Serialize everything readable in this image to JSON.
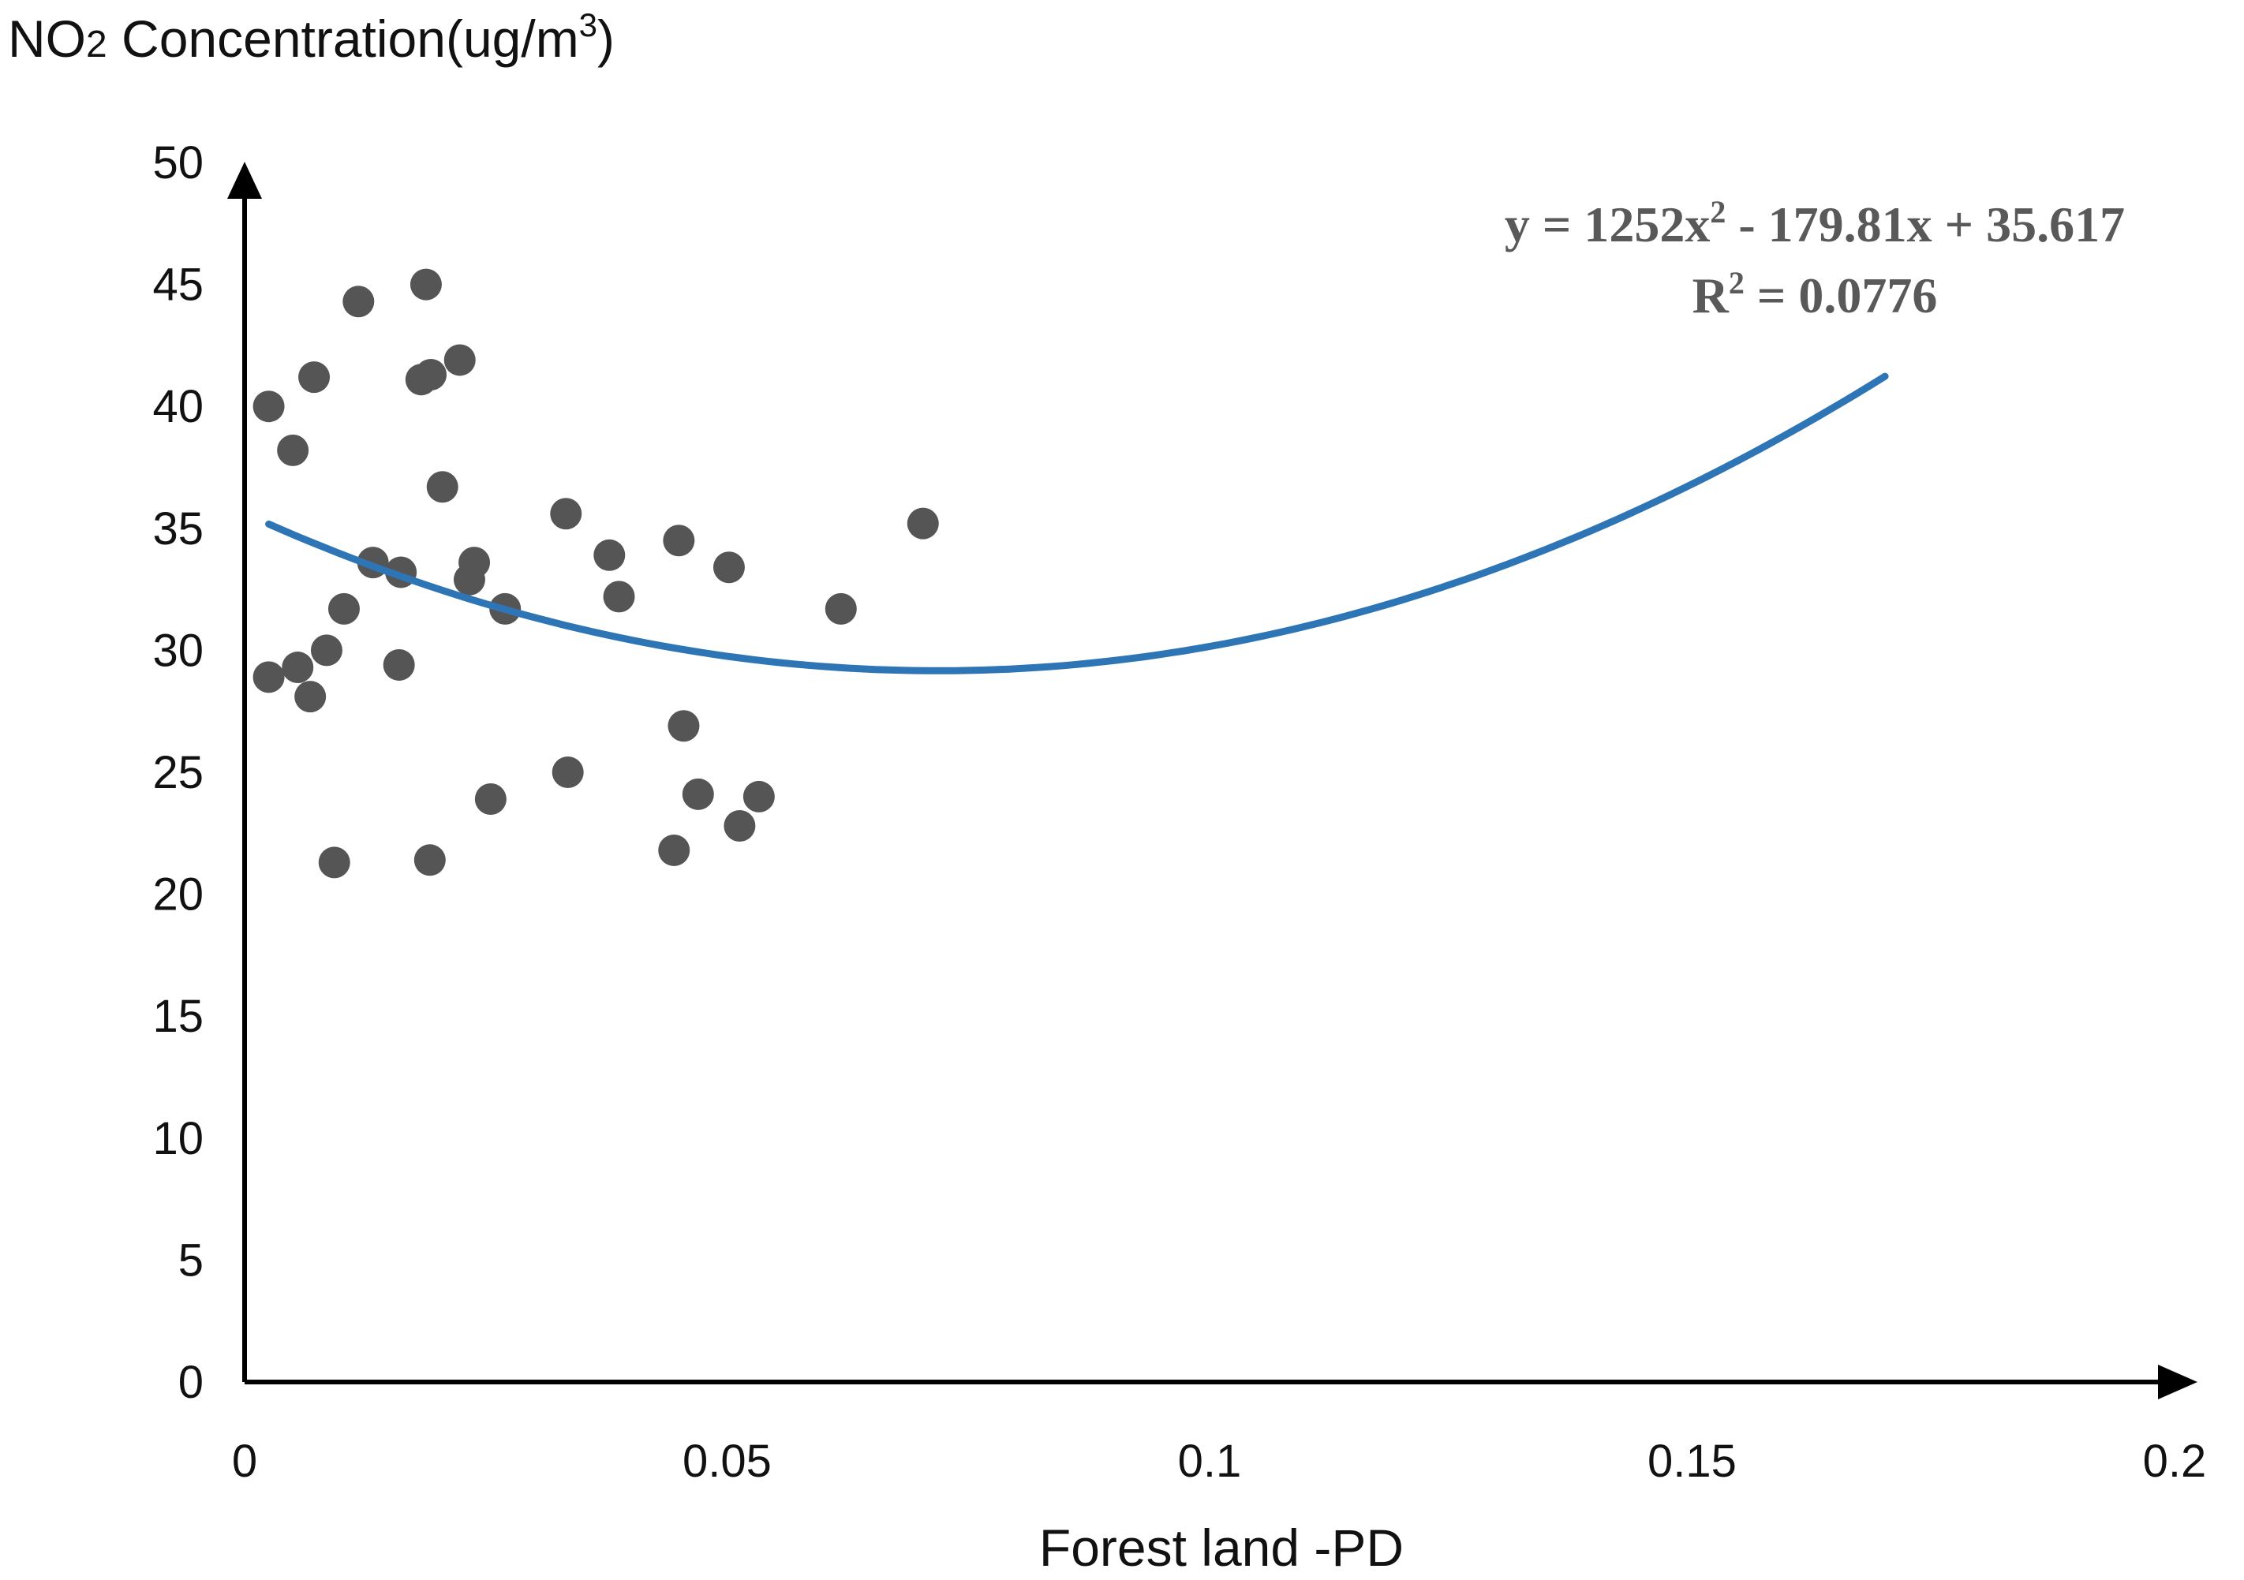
{
  "chart_data": {
    "type": "scatter",
    "ylabel": {
      "main": "NO",
      "subscript": "2",
      "middle": " Concentration(ug/m",
      "superscript": "3",
      "end": ")"
    },
    "xlabel": "Forest land -PD",
    "xlim": [
      0,
      0.2
    ],
    "ylim": [
      0,
      50
    ],
    "x_ticks": [
      "0",
      "0.05",
      "0.1",
      "0.15",
      "0.2"
    ],
    "x_tick_values": [
      0,
      0.05,
      0.1,
      0.15,
      0.2
    ],
    "y_ticks": [
      "0",
      "5",
      "10",
      "15",
      "20",
      "25",
      "30",
      "35",
      "40",
      "45",
      "50"
    ],
    "y_tick_values": [
      0,
      5,
      10,
      15,
      20,
      25,
      30,
      35,
      40,
      45,
      50
    ],
    "grid": false,
    "point_color": "#555555",
    "trend_color": "#2E75B6",
    "points": [
      {
        "x": 0.0025,
        "y": 40.0
      },
      {
        "x": 0.005,
        "y": 38.2
      },
      {
        "x": 0.0072,
        "y": 41.2
      },
      {
        "x": 0.0118,
        "y": 44.3
      },
      {
        "x": 0.0188,
        "y": 45.0
      },
      {
        "x": 0.0183,
        "y": 41.1
      },
      {
        "x": 0.0193,
        "y": 41.3
      },
      {
        "x": 0.0223,
        "y": 41.9
      },
      {
        "x": 0.0205,
        "y": 36.7
      },
      {
        "x": 0.0133,
        "y": 33.6
      },
      {
        "x": 0.0162,
        "y": 33.2
      },
      {
        "x": 0.0103,
        "y": 31.7
      },
      {
        "x": 0.0085,
        "y": 30.0
      },
      {
        "x": 0.0055,
        "y": 29.3
      },
      {
        "x": 0.0025,
        "y": 28.9
      },
      {
        "x": 0.0068,
        "y": 28.1
      },
      {
        "x": 0.016,
        "y": 29.4
      },
      {
        "x": 0.0238,
        "y": 33.6
      },
      {
        "x": 0.0233,
        "y": 32.9
      },
      {
        "x": 0.027,
        "y": 31.7
      },
      {
        "x": 0.0333,
        "y": 35.6
      },
      {
        "x": 0.0378,
        "y": 33.9
      },
      {
        "x": 0.0388,
        "y": 32.2
      },
      {
        "x": 0.045,
        "y": 34.5
      },
      {
        "x": 0.0502,
        "y": 33.4
      },
      {
        "x": 0.0618,
        "y": 31.7
      },
      {
        "x": 0.0703,
        "y": 35.2
      },
      {
        "x": 0.0455,
        "y": 26.9
      },
      {
        "x": 0.047,
        "y": 24.1
      },
      {
        "x": 0.0533,
        "y": 24.0
      },
      {
        "x": 0.0513,
        "y": 22.8
      },
      {
        "x": 0.0445,
        "y": 21.8
      },
      {
        "x": 0.0335,
        "y": 25.0
      },
      {
        "x": 0.0255,
        "y": 23.9
      },
      {
        "x": 0.0093,
        "y": 21.3
      },
      {
        "x": 0.0192,
        "y": 21.4
      }
    ],
    "trendline": {
      "type": "polynomial",
      "a": 1252,
      "b": -179.81,
      "c": 35.617,
      "x_range": [
        0.0025,
        0.17
      ],
      "equation_parts": {
        "prefix": "y = 1252x",
        "power": "2",
        "suffix": " - 179.81x + 35.617"
      },
      "r2_parts": {
        "prefix": "R",
        "power": "2",
        "suffix": " = 0.0776"
      }
    }
  }
}
